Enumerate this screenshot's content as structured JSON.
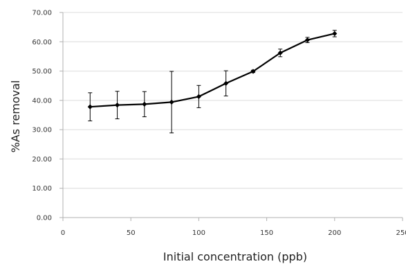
{
  "chart_data": {
    "type": "line",
    "title": "",
    "xlabel": "Initial concentration (ppb)",
    "ylabel": "%As removal",
    "xlim": [
      0,
      250
    ],
    "ylim": [
      0,
      70
    ],
    "x_ticks": [
      {
        "value": 0,
        "label": "0"
      },
      {
        "value": 50,
        "label": "50"
      },
      {
        "value": 100,
        "label": "100"
      },
      {
        "value": 150,
        "label": "150"
      },
      {
        "value": 200,
        "label": "200"
      },
      {
        "value": 250,
        "label": "250"
      }
    ],
    "y_ticks": [
      {
        "value": 0,
        "label": "0.00"
      },
      {
        "value": 10,
        "label": "10.00"
      },
      {
        "value": 20,
        "label": "20.00"
      },
      {
        "value": 30,
        "label": "30.00"
      },
      {
        "value": 40,
        "label": "40.00"
      },
      {
        "value": 50,
        "label": "50.00"
      },
      {
        "value": 60,
        "label": "60.00"
      },
      {
        "value": 70,
        "label": "70.00"
      }
    ],
    "grid": {
      "horizontal": true,
      "vertical": false
    },
    "legend": "none",
    "series": [
      {
        "color": "#000000",
        "marker": "diamond",
        "points": [
          {
            "x": 20,
            "y": 37.8,
            "err": 4.8
          },
          {
            "x": 40,
            "y": 38.4,
            "err": 4.7
          },
          {
            "x": 60,
            "y": 38.7,
            "err": 4.3
          },
          {
            "x": 80,
            "y": 39.4,
            "err": 10.5
          },
          {
            "x": 100,
            "y": 41.3,
            "err": 3.8
          },
          {
            "x": 120,
            "y": 45.8,
            "err": 4.3
          },
          {
            "x": 140,
            "y": 49.9,
            "err": 0.4
          },
          {
            "x": 160,
            "y": 56.2,
            "err": 1.3
          },
          {
            "x": 180,
            "y": 60.6,
            "err": 0.9
          },
          {
            "x": 200,
            "y": 62.8,
            "err": 1.1
          }
        ]
      }
    ],
    "colors": {
      "grid": "#dcdcdc",
      "axis": "#b0b0b0",
      "line": "#000000"
    }
  }
}
